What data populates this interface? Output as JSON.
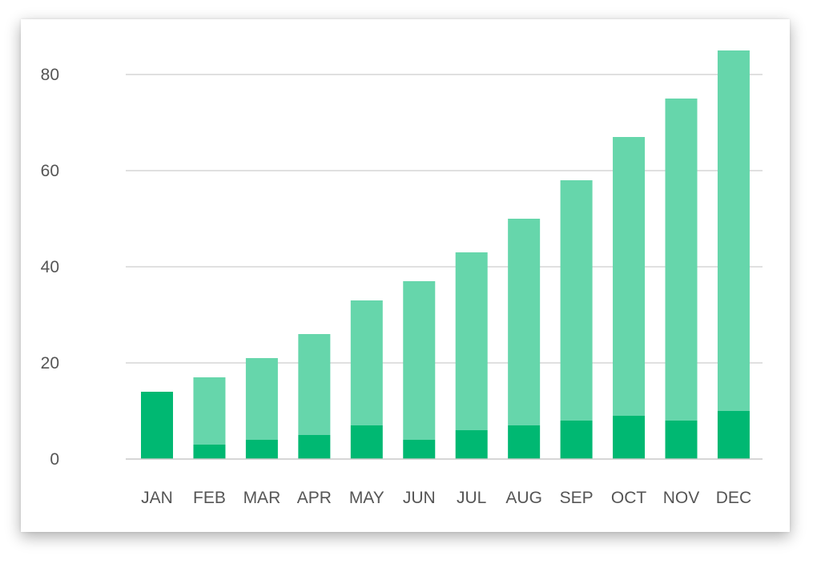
{
  "chart_data": {
    "type": "bar",
    "stacked": true,
    "categories": [
      "JAN",
      "FEB",
      "MAR",
      "APR",
      "MAY",
      "JUN",
      "JUL",
      "AUG",
      "SEP",
      "OCT",
      "NOV",
      "DEC"
    ],
    "series": [
      {
        "values": [
          14,
          3,
          4,
          5,
          7,
          4,
          6,
          7,
          8,
          9,
          8,
          10
        ],
        "color": "#00b872"
      },
      {
        "values": [
          0,
          14,
          17,
          21,
          26,
          33,
          37,
          43,
          50,
          58,
          67,
          75
        ],
        "color": "#66d6ab"
      }
    ],
    "title": "",
    "xlabel": "",
    "ylabel": "",
    "ylim": [
      0,
      85
    ],
    "yticks": [
      "0",
      "20",
      "40",
      "60",
      "80"
    ],
    "grid": true,
    "legend": "none"
  }
}
